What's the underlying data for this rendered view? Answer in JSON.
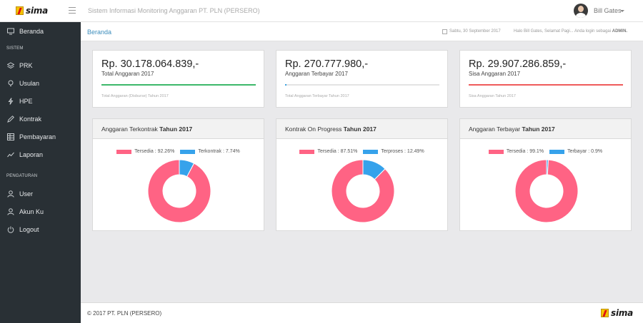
{
  "header": {
    "logo_text": "sima",
    "app_title": "Sistem Informasi Monitoring Anggaran PT. PLN (PERSERO)",
    "username": "Bill Gates"
  },
  "sidebar": {
    "sections": [
      "SISTEM",
      "PENGATURAN"
    ],
    "items": [
      {
        "label": "Beranda",
        "icon": "monitor-icon"
      },
      {
        "label": "PRK",
        "icon": "layers-icon"
      },
      {
        "label": "Usulan",
        "icon": "lightbulb-icon"
      },
      {
        "label": "HPE",
        "icon": "bolt-icon"
      },
      {
        "label": "Kontrak",
        "icon": "pen-icon"
      },
      {
        "label": "Pembayaran",
        "icon": "table-icon"
      },
      {
        "label": "Laporan",
        "icon": "trend-icon"
      },
      {
        "label": "User",
        "icon": "user-icon"
      },
      {
        "label": "Akun Ku",
        "icon": "user-account-icon"
      },
      {
        "label": "Logout",
        "icon": "power-icon"
      }
    ]
  },
  "breadcrumb": {
    "current": "Beranda",
    "date": "Sabtu, 30 September 2017",
    "greeting_prefix": "Halo Bill Gates, Selamat Pagi... Anda login sebagai",
    "role": "ADMIN."
  },
  "stats": [
    {
      "amount": "Rp. 30.178.064.839,-",
      "label": "Total Anggaran 2017",
      "footer": "Total Anggaran (Disburse) Tahun 2017",
      "progress": 1.0,
      "color": "#3db86a"
    },
    {
      "amount": "Rp. 270.777.980,-",
      "label": "Anggaran Terbayar 2017",
      "footer": "Total Anggaran Terbayar Tahun 2017",
      "progress": 0.009,
      "color": "#3aa3e3"
    },
    {
      "amount": "Rp. 29.907.286.859,-",
      "label": "Sisa Anggaran 2017",
      "footer": "Sisa Anggaran Tahun 2017",
      "progress": 1.0,
      "color": "#ef5b5b"
    }
  ],
  "chart_data": [
    {
      "type": "pie",
      "title_prefix": "Anggaran Terkontrak",
      "title_bold": "Tahun 2017",
      "categories": [
        "Tersedia",
        "Terkontrak"
      ],
      "values": [
        92.26,
        7.74
      ],
      "legend": [
        "Tersedia : 92.26%",
        "Terkontrak : 7.74%"
      ],
      "colors": [
        "#ff6384",
        "#36a2eb"
      ]
    },
    {
      "type": "pie",
      "title_prefix": "Kontrak On Progress",
      "title_bold": "Tahun 2017",
      "categories": [
        "Tersedia",
        "Terproses"
      ],
      "values": [
        87.51,
        12.49
      ],
      "legend": [
        "Tersedia : 87.51%",
        "Terproses : 12.49%"
      ],
      "colors": [
        "#ff6384",
        "#36a2eb"
      ]
    },
    {
      "type": "pie",
      "title_prefix": "Anggaran Terbayar",
      "title_bold": "Tahun 2017",
      "categories": [
        "Tersedia",
        "Terbayar"
      ],
      "values": [
        99.1,
        0.9
      ],
      "legend": [
        "Tersedia : 99.1%",
        "Terbayar : 0.9%"
      ],
      "colors": [
        "#ff6384",
        "#36a2eb"
      ]
    }
  ],
  "footer": {
    "copyright": "© 2017 PT. PLN (PERSERO)",
    "logo_text": "sima"
  }
}
